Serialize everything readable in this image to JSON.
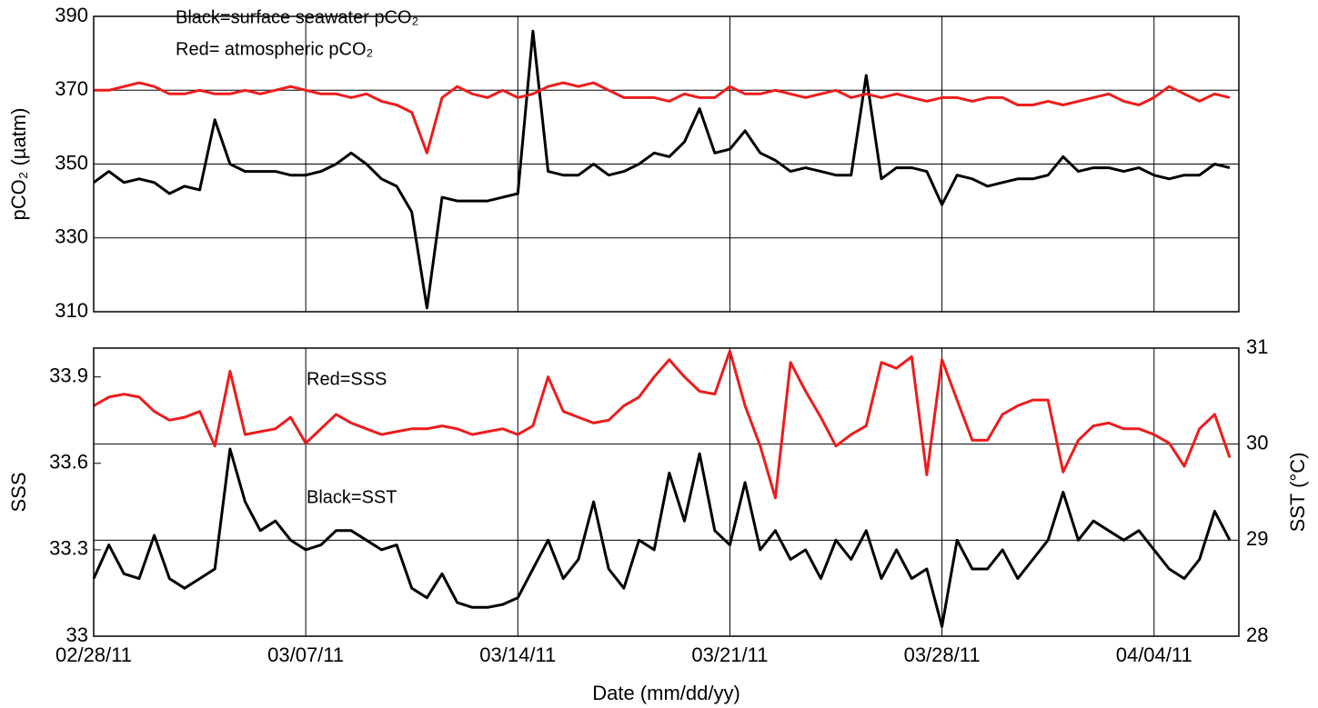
{
  "chart_data": [
    {
      "type": "line",
      "ylabel": "pCO₂ (µatm)",
      "annotations": [
        "Black=surface seawater pCO₂",
        "Red= atmospheric pCO₂"
      ],
      "x": [
        0,
        0.5,
        1,
        1.5,
        2,
        2.5,
        3,
        3.5,
        4,
        4.5,
        5,
        5.5,
        6,
        6.5,
        7,
        7.5,
        8,
        8.5,
        9,
        9.5,
        10,
        10.5,
        11,
        11.5,
        12,
        12.5,
        13,
        13.5,
        14,
        14.5,
        15,
        15.5,
        16,
        16.5,
        17,
        17.5,
        18,
        18.5,
        19,
        19.5,
        20,
        20.5,
        21,
        21.5,
        22,
        22.5,
        23,
        23.5,
        24,
        24.5,
        25,
        25.5,
        26,
        26.5,
        27,
        27.5,
        28,
        28.5,
        29,
        29.5,
        30,
        30.5,
        31,
        31.5,
        32,
        32.5,
        33,
        33.5,
        34,
        34.5,
        35,
        35.5,
        36,
        36.5,
        37,
        37.5
      ],
      "xlim": [
        0,
        37.8
      ],
      "xticks": [
        0,
        7,
        14,
        21,
        28,
        35
      ],
      "ylim": [
        310,
        390
      ],
      "yticks": [
        310,
        330,
        350,
        370,
        390
      ],
      "grid": true,
      "series": [
        {
          "color": "#000000",
          "values": [
            345,
            348,
            345,
            346,
            345,
            342,
            344,
            343,
            362,
            350,
            348,
            348,
            348,
            347,
            347,
            348,
            350,
            353,
            350,
            346,
            344,
            337,
            311,
            341,
            340,
            340,
            340,
            341,
            342,
            386,
            348,
            347,
            347,
            350,
            347,
            348,
            350,
            353,
            352,
            356,
            365,
            353,
            354,
            359,
            353,
            351,
            348,
            349,
            348,
            347,
            347,
            374,
            346,
            349,
            349,
            348,
            339,
            347,
            346,
            344,
            345,
            346,
            346,
            347,
            352,
            348,
            349,
            349,
            348,
            349,
            347,
            346,
            347,
            347,
            350,
            349
          ]
        },
        {
          "color": "#ee1c1c",
          "values": [
            370,
            370,
            371,
            372,
            371,
            369,
            369,
            370,
            369,
            369,
            370,
            369,
            370,
            371,
            370,
            369,
            369,
            368,
            369,
            367,
            366,
            364,
            353,
            368,
            371,
            369,
            368,
            370,
            368,
            369,
            371,
            372,
            371,
            372,
            370,
            368,
            368,
            368,
            367,
            369,
            368,
            368,
            371,
            369,
            369,
            370,
            369,
            368,
            369,
            370,
            368,
            369,
            368,
            369,
            368,
            367,
            368,
            368,
            367,
            368,
            368,
            366,
            366,
            367,
            366,
            367,
            368,
            369,
            367,
            366,
            368,
            371,
            369,
            367,
            369,
            368
          ]
        }
      ]
    },
    {
      "type": "line",
      "ylabel": "SSS",
      "y2label": "SST (°C)",
      "xlabel": "Date (mm/dd/yy)",
      "annotations": [
        "Red=SSS",
        "Black=SST"
      ],
      "x": [
        0,
        0.5,
        1,
        1.5,
        2,
        2.5,
        3,
        3.5,
        4,
        4.5,
        5,
        5.5,
        6,
        6.5,
        7,
        7.5,
        8,
        8.5,
        9,
        9.5,
        10,
        10.5,
        11,
        11.5,
        12,
        12.5,
        13,
        13.5,
        14,
        14.5,
        15,
        15.5,
        16,
        16.5,
        17,
        17.5,
        18,
        18.5,
        19,
        19.5,
        20,
        20.5,
        21,
        21.5,
        22,
        22.5,
        23,
        23.5,
        24,
        24.5,
        25,
        25.5,
        26,
        26.5,
        27,
        27.5,
        28,
        28.5,
        29,
        29.5,
        30,
        30.5,
        31,
        31.5,
        32,
        32.5,
        33,
        33.5,
        34,
        34.5,
        35,
        35.5,
        36,
        36.5,
        37,
        37.5
      ],
      "xlim": [
        0,
        37.8
      ],
      "xticks": [
        {
          "value": 0,
          "label": "02/28/11"
        },
        {
          "value": 7,
          "label": "03/07/11"
        },
        {
          "value": 14,
          "label": "03/14/11"
        },
        {
          "value": 21,
          "label": "03/21/11"
        },
        {
          "value": 28,
          "label": "03/28/11"
        },
        {
          "value": 35,
          "label": "04/04/11"
        }
      ],
      "ylim": [
        33,
        34
      ],
      "yticks": [
        33,
        33.3,
        33.6,
        33.9
      ],
      "y2lim": [
        28,
        31
      ],
      "y2ticks": [
        28,
        29,
        30,
        31
      ],
      "grid": "y2",
      "series": [
        {
          "color": "#ee1c1c",
          "values": [
            33.8,
            33.83,
            33.84,
            33.83,
            33.78,
            33.75,
            33.76,
            33.78,
            33.66,
            33.92,
            33.7,
            33.71,
            33.72,
            33.76,
            33.67,
            33.72,
            33.77,
            33.74,
            33.72,
            33.7,
            33.71,
            33.72,
            33.72,
            33.73,
            33.72,
            33.7,
            33.71,
            33.72,
            33.7,
            33.73,
            33.9,
            33.78,
            33.76,
            33.74,
            33.75,
            33.8,
            33.83,
            33.9,
            33.96,
            33.9,
            33.85,
            33.84,
            33.99,
            33.8,
            33.66,
            33.48,
            33.95,
            33.85,
            33.76,
            33.66,
            33.7,
            33.73,
            33.95,
            33.93,
            33.97,
            33.56,
            33.96,
            33.82,
            33.68,
            33.68,
            33.77,
            33.8,
            33.82,
            33.82,
            33.57,
            33.68,
            33.73,
            33.74,
            33.72,
            33.72,
            33.7,
            33.67,
            33.59,
            33.72,
            33.77,
            33.62
          ]
        },
        {
          "color": "#000000",
          "axis": "y2",
          "values": [
            28.6,
            28.95,
            28.65,
            28.6,
            29.05,
            28.6,
            28.5,
            28.6,
            28.7,
            29.95,
            29.4,
            29.1,
            29.2,
            29.0,
            28.9,
            28.95,
            29.1,
            29.1,
            29.0,
            28.9,
            28.95,
            28.5,
            28.4,
            28.65,
            28.35,
            28.3,
            28.3,
            28.33,
            28.4,
            28.7,
            29.0,
            28.6,
            28.8,
            29.4,
            28.7,
            28.5,
            29.0,
            28.9,
            29.7,
            29.2,
            29.9,
            29.1,
            28.95,
            29.6,
            28.9,
            29.1,
            28.8,
            28.9,
            28.6,
            29.0,
            28.8,
            29.1,
            28.6,
            28.9,
            28.6,
            28.7,
            28.1,
            29.0,
            28.7,
            28.7,
            28.9,
            28.6,
            28.8,
            29.0,
            29.5,
            29.0,
            29.2,
            29.1,
            29.0,
            29.1,
            28.9,
            28.7,
            28.6,
            28.8,
            29.3,
            29.0
          ]
        }
      ]
    }
  ]
}
